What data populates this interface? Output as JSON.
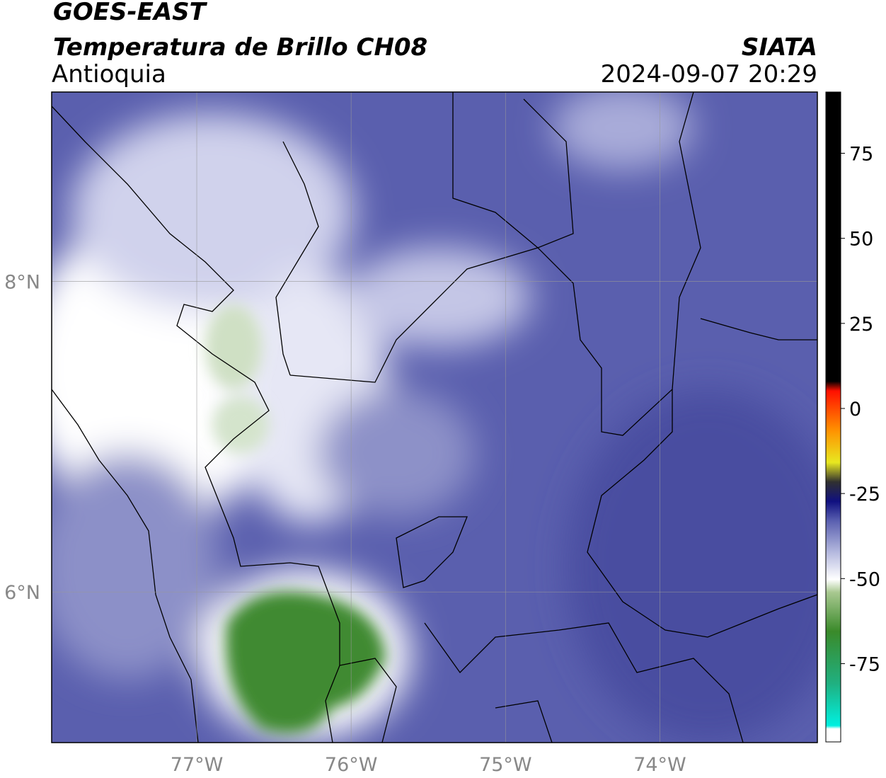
{
  "chart_data": {
    "type": "map",
    "title": "GOES-EAST",
    "subtitle": "Temperatura de Brillo CH08",
    "region": "Antioquia",
    "source": "SIATA",
    "timestamp": "2024-09-07 20:29",
    "xlim": [
      -77.94,
      -72.98
    ],
    "ylim": [
      5.03,
      9.22
    ],
    "xticks": [
      {
        "value": -77,
        "label": "77°W"
      },
      {
        "value": -76,
        "label": "76°W"
      },
      {
        "value": -75,
        "label": "75°W"
      },
      {
        "value": -74,
        "label": "74°W"
      }
    ],
    "yticks": [
      {
        "value": 6,
        "label": "6°N"
      },
      {
        "value": 8,
        "label": "8°N"
      }
    ],
    "grid": true,
    "colorbar": {
      "clim": [
        -98,
        93
      ],
      "ticks": [
        75,
        50,
        25,
        0,
        -25,
        -50,
        -75
      ]
    }
  }
}
